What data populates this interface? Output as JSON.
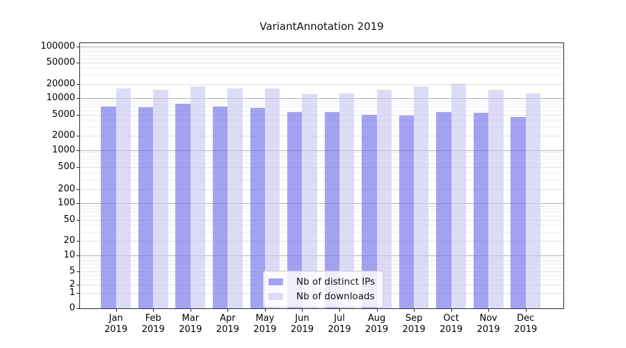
{
  "title": "VariantAnnotation 2019",
  "colors": {
    "background": "#ffffff",
    "spine": "#2b2b2b",
    "grid_major": "#b0b0b0",
    "grid_light": "#e0e0e0",
    "grid_minor": "#ececec",
    "tick_label": "#000000",
    "legend_border": "#cccccc"
  },
  "chart_data": {
    "type": "bar",
    "title": "VariantAnnotation 2019",
    "categories": [
      "Jan 2019",
      "Feb 2019",
      "Mar 2019",
      "Apr 2019",
      "May 2019",
      "Jun 2019",
      "Jul 2019",
      "Aug 2019",
      "Sep 2019",
      "Oct 2019",
      "Nov 2019",
      "Dec 2019"
    ],
    "x_tick_months": [
      "Jan",
      "Feb",
      "Mar",
      "Apr",
      "May",
      "Jun",
      "Jul",
      "Aug",
      "Sep",
      "Oct",
      "Nov",
      "Dec"
    ],
    "x_tick_year": "2019",
    "series": [
      {
        "name": "Nb of distinct IPs",
        "color": "#a3a3f1",
        "color_rgba": "rgba(113,113,233,0.65)",
        "values": [
          7200,
          6900,
          8100,
          7100,
          6700,
          5600,
          5600,
          5000,
          4800,
          5600,
          5500,
          4600
        ]
      },
      {
        "name": "Nb of downloads",
        "color": "#dcdcf9",
        "color_rgba": "rgba(201,201,246,0.65)",
        "values": [
          16000,
          15300,
          18100,
          16300,
          16000,
          12500,
          12900,
          15100,
          17700,
          20300,
          15300,
          12700
        ]
      }
    ],
    "yticks": [
      0,
      1,
      2,
      5,
      10,
      20,
      50,
      100,
      200,
      500,
      1000,
      2000,
      5000,
      10000,
      20000,
      50000,
      100000
    ],
    "yscale": "symlog",
    "ylim": [
      0,
      100000
    ],
    "xlabel": "",
    "ylabel": "",
    "grid": true,
    "legend_position": "lower center"
  }
}
